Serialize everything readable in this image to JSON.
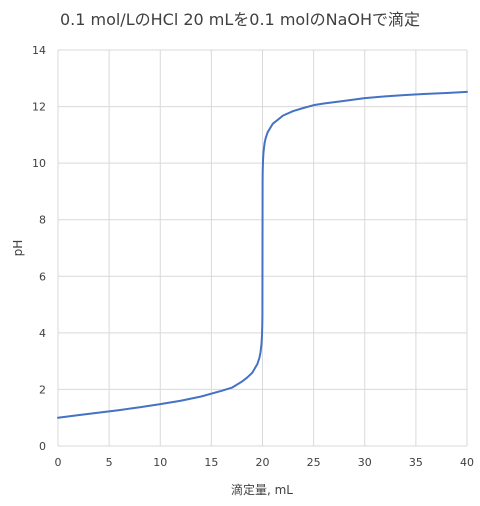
{
  "chart_data": {
    "type": "line",
    "title": "0.1 mol/LのHCl 20 mLを0.1 molのNaOHで滴定",
    "xlabel": "滴定量, mL",
    "ylabel": "pH",
    "xlim": [
      0,
      40
    ],
    "ylim": [
      0,
      14
    ],
    "xticks": [
      0,
      5,
      10,
      15,
      20,
      25,
      30,
      35,
      40
    ],
    "yticks": [
      0,
      2,
      4,
      6,
      8,
      10,
      12,
      14
    ],
    "grid": true,
    "legend": "none",
    "series": [
      {
        "color": "#4472c4",
        "x": [
          0,
          2,
          4,
          6,
          8,
          10,
          12,
          14,
          16,
          17,
          18,
          18.5,
          19,
          19.5,
          19.7,
          19.8,
          19.9,
          19.95,
          19.98,
          19.99,
          20,
          20.01,
          20.02,
          20.05,
          20.1,
          20.2,
          20.3,
          20.5,
          21,
          22,
          23,
          24,
          25,
          26,
          28,
          30,
          32,
          34,
          36,
          38,
          40
        ],
        "values": [
          1.0,
          1.09,
          1.18,
          1.27,
          1.37,
          1.48,
          1.6,
          1.75,
          1.95,
          2.06,
          2.28,
          2.42,
          2.59,
          2.9,
          3.12,
          3.3,
          3.6,
          3.9,
          4.3,
          4.6,
          7.0,
          9.4,
          9.7,
          10.1,
          10.4,
          10.7,
          10.87,
          11.09,
          11.39,
          11.68,
          11.84,
          11.95,
          12.05,
          12.11,
          12.2,
          12.3,
          12.36,
          12.41,
          12.45,
          12.48,
          12.52
        ]
      }
    ]
  }
}
